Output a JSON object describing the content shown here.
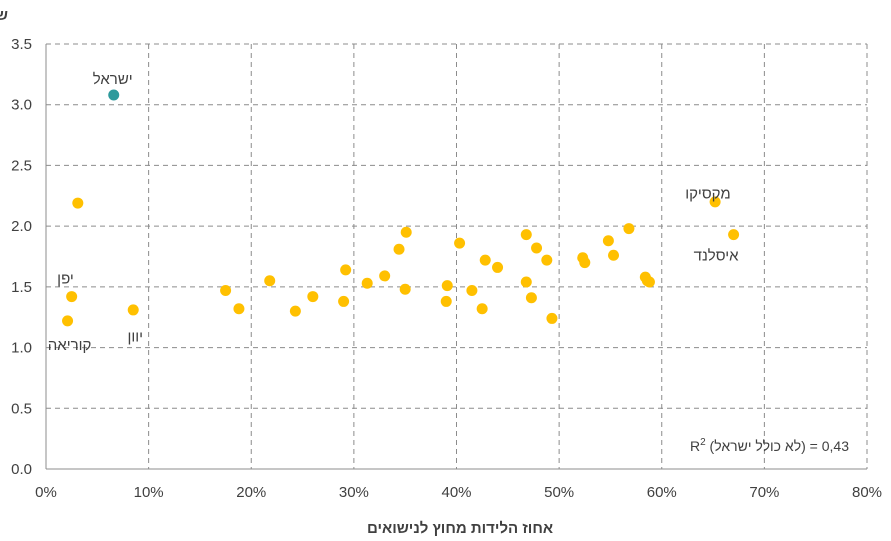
{
  "chart_data": {
    "type": "scatter",
    "ylabel": "שיעור הפריון הכולל",
    "xlabel": "אחוז הלידות מחוץ לנישואים",
    "xlim": [
      0,
      80
    ],
    "ylim": [
      0.0,
      3.5
    ],
    "x_ticks": [
      "0%",
      "10%",
      "20%",
      "30%",
      "40%",
      "50%",
      "60%",
      "70%",
      "80%"
    ],
    "y_ticks": [
      "0.0",
      "0.5",
      "1.0",
      "1.5",
      "2.0",
      "2.5",
      "3.0",
      "3.5"
    ],
    "grid": true,
    "colors": {
      "default": "#FFC000",
      "highlight": "#2E9A9C"
    },
    "r2_label": {
      "prefix": "R",
      "superscript": "2",
      "text": " (לא כולל ישראל) = 0,43"
    },
    "labels": [
      {
        "text": "ישראל",
        "x": 6.5,
        "y": 3.21
      },
      {
        "text": "מקסיקו",
        "x": 64.5,
        "y": 2.27
      },
      {
        "text": "איסלנד",
        "x": 65.3,
        "y": 1.76
      },
      {
        "text": "יפן",
        "x": 1.9,
        "y": 1.57
      },
      {
        "text": "יוון",
        "x": 8.7,
        "y": 1.09
      },
      {
        "text": "קוריאה",
        "x": 2.3,
        "y": 1.02
      }
    ],
    "series": [
      {
        "name": "ישראל",
        "highlight": true,
        "points": [
          [
            6.6,
            3.08
          ]
        ]
      },
      {
        "name": "",
        "highlight": false,
        "points": [
          [
            3.1,
            2.19
          ],
          [
            2.5,
            1.42
          ],
          [
            2.1,
            1.22
          ],
          [
            8.5,
            1.31
          ],
          [
            17.5,
            1.47
          ],
          [
            18.8,
            1.32
          ],
          [
            21.8,
            1.55
          ],
          [
            24.3,
            1.3
          ],
          [
            26.0,
            1.42
          ],
          [
            29.0,
            1.38
          ],
          [
            29.2,
            1.64
          ],
          [
            31.3,
            1.53
          ],
          [
            33.0,
            1.59
          ],
          [
            34.4,
            1.81
          ],
          [
            35.0,
            1.48
          ],
          [
            35.1,
            1.95
          ],
          [
            39.0,
            1.38
          ],
          [
            39.1,
            1.51
          ],
          [
            40.3,
            1.86
          ],
          [
            41.5,
            1.47
          ],
          [
            42.5,
            1.32
          ],
          [
            42.8,
            1.72
          ],
          [
            44.0,
            1.66
          ],
          [
            46.8,
            1.93
          ],
          [
            46.8,
            1.54
          ],
          [
            47.3,
            1.41
          ],
          [
            47.8,
            1.82
          ],
          [
            48.8,
            1.72
          ],
          [
            49.3,
            1.24
          ],
          [
            52.3,
            1.74
          ],
          [
            52.5,
            1.7
          ],
          [
            54.8,
            1.88
          ],
          [
            55.3,
            1.76
          ],
          [
            56.8,
            1.98
          ],
          [
            58.4,
            1.58
          ],
          [
            58.6,
            1.55
          ],
          [
            58.8,
            1.54
          ],
          [
            65.2,
            2.2
          ],
          [
            67.0,
            1.93
          ]
        ]
      }
    ]
  }
}
